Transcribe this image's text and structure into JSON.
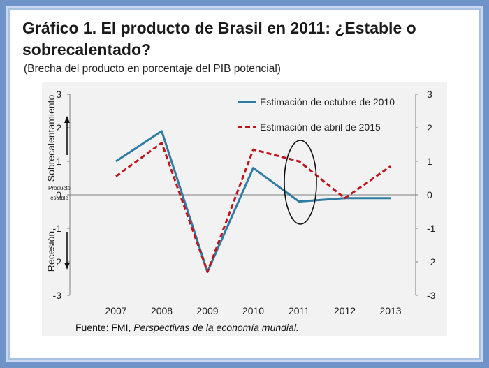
{
  "title": "Gráfico 1. El producto de Brasil en 2011: ¿Estable o sobrecalentado?",
  "subtitle": "(Brecha del producto en porcentaje del PIB potencial)",
  "source_prefix": "Fuente: FMI, ",
  "source_italic": "Perspectivas de la economía mundial.",
  "side_labels": {
    "top": "Sobrecalentamiento",
    "bottom": "Recesión",
    "zero_line1": "Producto",
    "zero_line2": "estable"
  },
  "colors": {
    "frame": "#6f93c9",
    "panel": "#f2f2f2",
    "series_2010": "#2e7ca3",
    "series_2015": "#c0141c"
  },
  "chart_data": {
    "type": "line",
    "x": [
      "2007",
      "2008",
      "2009",
      "2010",
      "2011",
      "2012",
      "2013"
    ],
    "ylim": [
      -3,
      3
    ],
    "yticks": [
      "3",
      "2",
      "1",
      "0",
      "-1",
      "-2",
      "-3"
    ],
    "grid": false,
    "legend_position": "top-right",
    "series": [
      {
        "name": "Estimación de octubre de 2010",
        "style": "solid",
        "values": [
          1.0,
          1.9,
          -2.3,
          0.8,
          -0.2,
          -0.1,
          -0.1
        ]
      },
      {
        "name": "Estimación de abril de 2015",
        "style": "dashed",
        "values": [
          0.55,
          1.55,
          -2.3,
          1.35,
          1.0,
          -0.1,
          0.85
        ]
      }
    ],
    "annotation": "ellipse highlighting 2011"
  }
}
